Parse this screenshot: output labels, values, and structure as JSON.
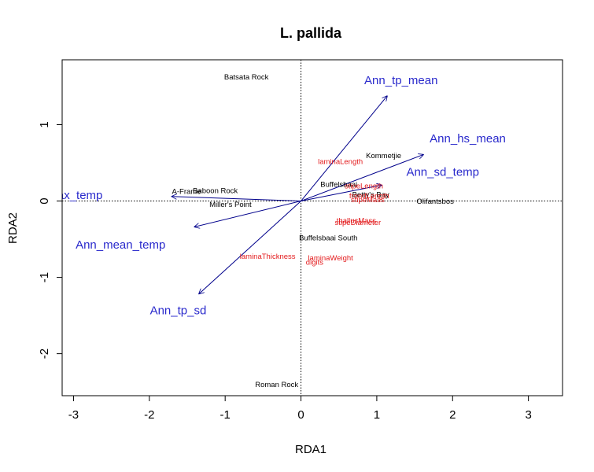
{
  "chart_data": {
    "type": "scatter",
    "title": "L. pallida",
    "xlabel": "RDA1",
    "ylabel": "RDA2",
    "xlim": [
      -3.15,
      3.45
    ],
    "ylim": [
      -2.55,
      1.85
    ],
    "xticks": [
      -3,
      -2,
      -1,
      0,
      1,
      2,
      3
    ],
    "yticks": [
      -2,
      -1,
      0,
      1
    ],
    "xtick_labels": [
      "-3",
      "-2",
      "-1",
      "0",
      "1",
      "2",
      "3"
    ],
    "ytick_labels": [
      "-2",
      "-1",
      "0",
      "1"
    ],
    "reference_lines": {
      "x": 0,
      "y": 0,
      "style": "dotted"
    },
    "colors": {
      "sites": "#000000",
      "responses": "#e31a1c",
      "environment": "#2a2acc",
      "arrows": "#00008b"
    },
    "sites": [
      {
        "label": "Batsata Rock",
        "x": -0.72,
        "y": 1.63
      },
      {
        "label": "Kommetjie",
        "x": 1.09,
        "y": 0.6
      },
      {
        "label": "Buffelsbaai",
        "x": 0.5,
        "y": 0.22
      },
      {
        "label": "A-Frame",
        "x": -1.51,
        "y": 0.13
      },
      {
        "label": "Baboon Rock",
        "x": -1.13,
        "y": 0.14
      },
      {
        "label": "Miller's Point",
        "x": -0.93,
        "y": -0.04
      },
      {
        "label": "Betty's Bay",
        "x": 0.92,
        "y": 0.09
      },
      {
        "label": "Olifantsbos",
        "x": 1.77,
        "y": 0.0
      },
      {
        "label": "Buffelsbaai South",
        "x": 0.36,
        "y": -0.48
      },
      {
        "label": "Roman Rock",
        "x": -0.32,
        "y": -2.4
      }
    ],
    "responses": [
      {
        "label": "laminaLength",
        "x": 0.52,
        "y": 0.52
      },
      {
        "label": "stipeLength",
        "x": 0.83,
        "y": 0.2
      },
      {
        "label": "frondLength",
        "x": 0.9,
        "y": 0.07
      },
      {
        "label": "stipeMass",
        "x": 0.88,
        "y": 0.02
      },
      {
        "label": "thallusMass",
        "x": 0.73,
        "y": -0.25
      },
      {
        "label": "stipeDiameter",
        "x": 0.75,
        "y": -0.28
      },
      {
        "label": "laminaThickness",
        "x": -0.44,
        "y": -0.72
      },
      {
        "label": "laminaWeight",
        "x": 0.39,
        "y": -0.74
      },
      {
        "label": "digits",
        "x": 0.18,
        "y": -0.8
      }
    ],
    "environment": [
      {
        "label": "Ann_tp_mean",
        "x": 1.14,
        "y": 1.38,
        "label_x": 1.32,
        "label_y": 1.58
      },
      {
        "label": "Ann_hs_mean",
        "x": 1.62,
        "y": 0.61,
        "label_x": 2.2,
        "label_y": 0.82
      },
      {
        "label": "Ann_sd_temp",
        "x": 1.07,
        "y": 0.21,
        "label_x": 1.87,
        "label_y": 0.38
      },
      {
        "label": "max_temp",
        "x": -1.71,
        "y": 0.06,
        "label_x": -2.98,
        "label_y": 0.08
      },
      {
        "label": "Ann_mean_temp",
        "x": -1.41,
        "y": -0.34,
        "label_x": -2.38,
        "label_y": -0.57
      },
      {
        "label": "Ann_tp_sd",
        "x": -1.35,
        "y": -1.22,
        "label_x": -1.62,
        "label_y": -1.43
      }
    ]
  }
}
